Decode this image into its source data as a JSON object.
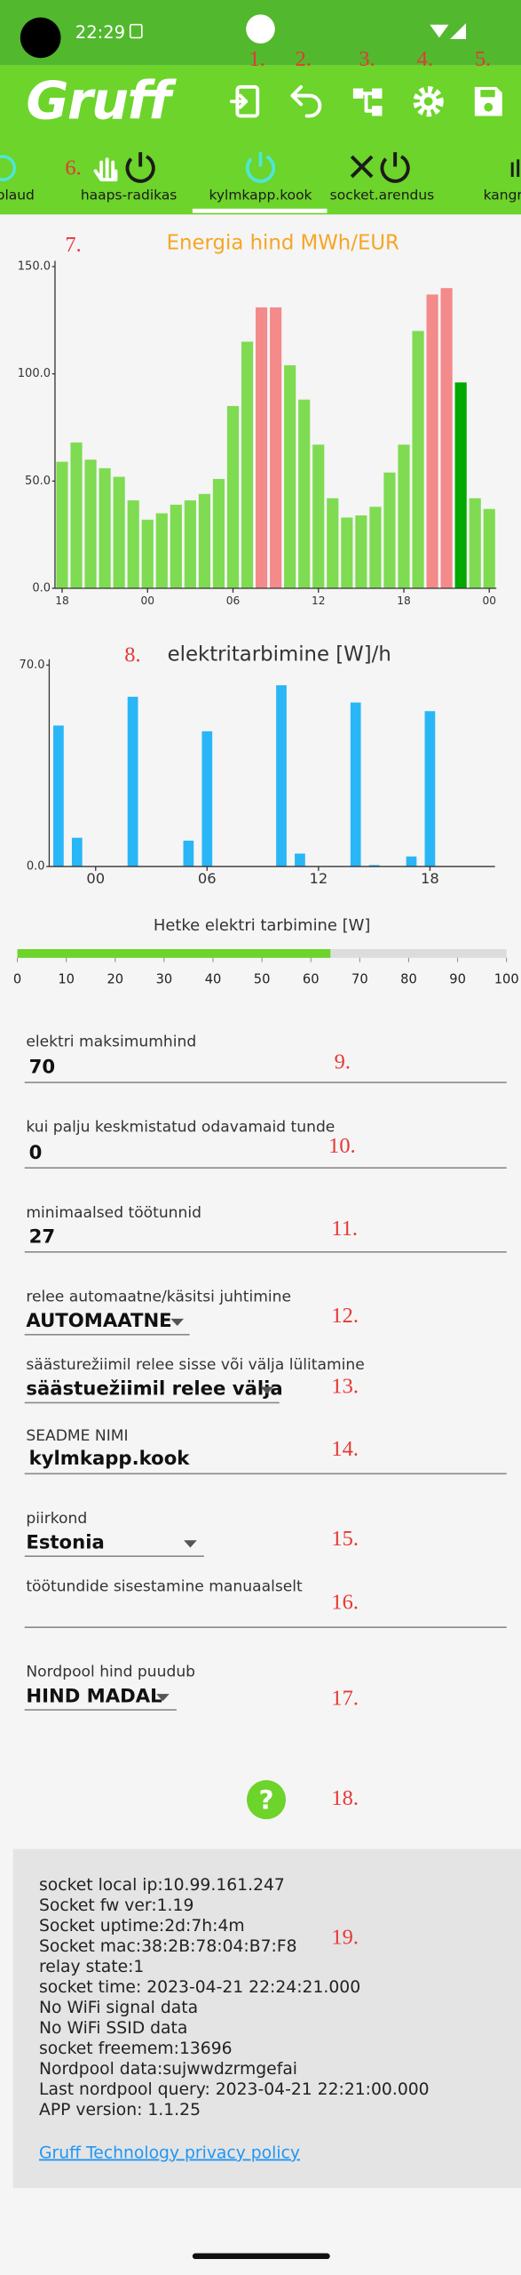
{
  "status_bar": {
    "time": "22:29"
  },
  "app_bar": {
    "logo": "Gruff"
  },
  "tabs": [
    "toolaud",
    "haaps-radikas",
    "kylmkapp.kook",
    "socket.arendus",
    "kangr"
  ],
  "chart_data": [
    {
      "type": "bar",
      "title": "Energia hind MWh/EUR",
      "title_color": "#f5a623",
      "categories": [
        "18",
        null,
        null,
        null,
        null,
        null,
        "00",
        null,
        null,
        null,
        null,
        null,
        "06",
        null,
        null,
        null,
        null,
        null,
        "12",
        null,
        null,
        null,
        null,
        null,
        "18",
        null,
        null,
        null,
        null,
        null,
        "00"
      ],
      "values": [
        59,
        68,
        60,
        56,
        52,
        41,
        32,
        35,
        39,
        41,
        44,
        51,
        85,
        115,
        131,
        131,
        104,
        88,
        67,
        42,
        33,
        34,
        38,
        54,
        67,
        120,
        137,
        140,
        96,
        42,
        37
      ],
      "colors": [
        "#7fdb52",
        "#7fdb52",
        "#7fdb52",
        "#7fdb52",
        "#7fdb52",
        "#7fdb52",
        "#7fdb52",
        "#7fdb52",
        "#7fdb52",
        "#7fdb52",
        "#7fdb52",
        "#7fdb52",
        "#7fdb52",
        "#7fdb52",
        "#f48a8a",
        "#f48a8a",
        "#7fdb52",
        "#7fdb52",
        "#7fdb52",
        "#7fdb52",
        "#7fdb52",
        "#7fdb52",
        "#7fdb52",
        "#7fdb52",
        "#7fdb52",
        "#7fdb52",
        "#f48a8a",
        "#f48a8a",
        "#00a800",
        "#7fdb52",
        "#7fdb52"
      ],
      "ylim": [
        0,
        150
      ],
      "yticks": [
        {
          "value": 0,
          "label": "0.0"
        },
        {
          "value": 50,
          "label": "50.0"
        },
        {
          "value": 100,
          "label": "100.0"
        },
        {
          "value": 150,
          "label": "150.0"
        }
      ]
    },
    {
      "type": "bar",
      "title": "elektritarbimine [W]/h",
      "title_color": "#333333",
      "categories": [
        null,
        null,
        "00",
        null,
        null,
        null,
        null,
        null,
        "06",
        null,
        null,
        null,
        null,
        null,
        "12",
        null,
        null,
        null,
        null,
        null,
        "18",
        null,
        null,
        null
      ],
      "values": [
        49,
        10,
        0,
        0,
        59,
        0,
        0,
        9,
        47,
        0,
        0,
        0,
        63,
        4.5,
        0,
        0,
        57,
        0.5,
        0,
        3.5,
        54,
        0,
        0,
        0
      ],
      "color": "#29b6f6",
      "ylim": [
        0,
        70
      ],
      "yticks": [
        {
          "value": 0,
          "label": "0.0"
        },
        {
          "value": 70,
          "label": "70.0"
        }
      ]
    },
    {
      "type": "gauge",
      "title": "Hetke elektri tarbimine [W]",
      "value": 64,
      "color": "#6cd42a",
      "xlim": [
        0,
        100
      ],
      "xticks": [
        0,
        10,
        20,
        30,
        40,
        50,
        60,
        70,
        80,
        90,
        100
      ]
    }
  ],
  "form": {
    "fields": [
      {
        "label": "elektri maksimumhind",
        "value": "70"
      },
      {
        "label": "kui palju keskmistatud odavamaid tunde",
        "value": "0"
      },
      {
        "label": "minimaalsed töötunnid",
        "value": "27"
      },
      {
        "label": "relee automaatne/käsitsi juhtimine",
        "value": "AUTOMAATNE"
      },
      {
        "label": "säästurežiimil relee sisse või välja lülitamine",
        "value": "säästuežiimil relee välja"
      },
      {
        "label": "SEADME NIMI",
        "value": "kylmkapp.kook"
      },
      {
        "label": "piirkond",
        "value": "Estonia"
      },
      {
        "label": "töötundide sisestamine manuaalselt"
      },
      {
        "label": "Nordpool hind puudub",
        "value": "HIND MADAL"
      }
    ]
  },
  "help": "?",
  "info": {
    "lines": [
      "socket local ip:10.99.161.247",
      "Socket fw ver:1.19",
      "Socket uptime:2d:7h:4m",
      "Socket mac:38:2B:78:04:B7:F8",
      "relay state:1",
      "socket time: 2023-04-21 22:24:21.000",
      "No WiFi signal data",
      "No WiFi SSID data",
      "socket freemem:13696",
      "Nordpool data:sujwwdzrmgefai",
      "Last nordpool query: 2023-04-21 22:21:00.000",
      "APP version: 1.1.25"
    ],
    "link": "Gruff Technology privacy policy"
  },
  "annotations": [
    "1.",
    "2.",
    "3.",
    "4.",
    "5.",
    "6.",
    "7.",
    "8.",
    "9.",
    "10.",
    "11.",
    "12.",
    "13.",
    "14.",
    "15.",
    "16.",
    "17.",
    "18.",
    "19."
  ]
}
